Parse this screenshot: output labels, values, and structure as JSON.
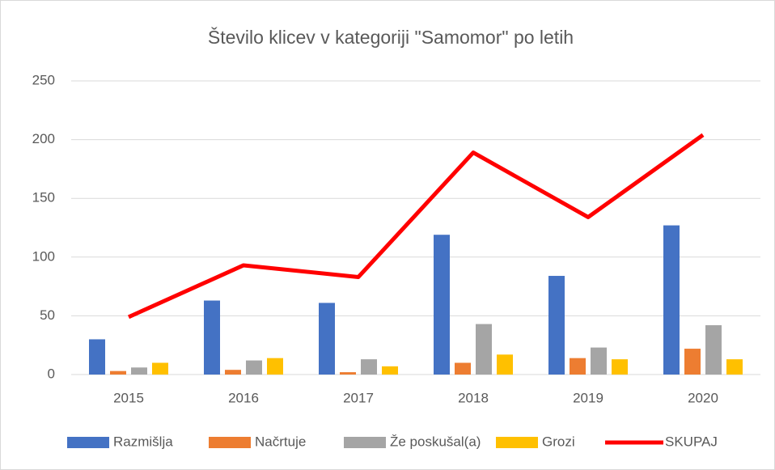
{
  "chart_data": {
    "type": "bar",
    "title": "Število klicev v kategoriji \"Samomor\" po letih",
    "categories": [
      "2015",
      "2016",
      "2017",
      "2018",
      "2019",
      "2020"
    ],
    "series": [
      {
        "name": "Razmišlja",
        "color": "#4472c4",
        "values": [
          30,
          63,
          61,
          119,
          84,
          127
        ]
      },
      {
        "name": "Načrtuje",
        "color": "#ed7d31",
        "values": [
          3,
          4,
          2,
          10,
          14,
          22
        ]
      },
      {
        "name": "Že poskušal(a)",
        "color": "#a5a5a5",
        "values": [
          6,
          12,
          13,
          43,
          23,
          42
        ]
      },
      {
        "name": "Grozi",
        "color": "#ffc000",
        "values": [
          10,
          14,
          7,
          17,
          13,
          13
        ]
      },
      {
        "name": "SKUPAJ",
        "color": "#ff0000",
        "type": "line",
        "values": [
          49,
          93,
          83,
          189,
          134,
          204
        ]
      }
    ],
    "ylim": [
      0,
      250
    ],
    "yticks": [
      0,
      50,
      100,
      150,
      200,
      250
    ],
    "grid": true,
    "legend": "bottom"
  }
}
